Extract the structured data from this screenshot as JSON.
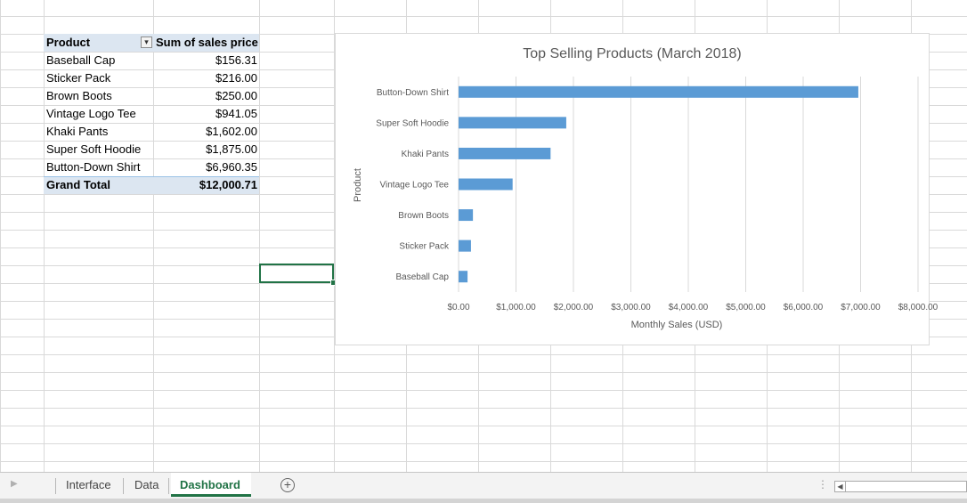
{
  "pivot": {
    "header_product": "Product",
    "header_sum": "Sum of sales price",
    "filter_icon": "filter-sort-icon",
    "rows": [
      {
        "product": "Baseball Cap",
        "value": "$156.31"
      },
      {
        "product": "Sticker Pack",
        "value": "$216.00"
      },
      {
        "product": "Brown Boots",
        "value": "$250.00"
      },
      {
        "product": "Vintage Logo Tee",
        "value": "$941.05"
      },
      {
        "product": "Khaki Pants",
        "value": "$1,602.00"
      },
      {
        "product": "Super Soft Hoodie",
        "value": "$1,875.00"
      },
      {
        "product": "Button-Down Shirt",
        "value": "$6,960.35"
      }
    ],
    "total_label": "Grand Total",
    "total_value": "$12,000.71"
  },
  "chart_data": {
    "type": "bar",
    "orientation": "horizontal",
    "title": "Top Selling Products (March 2018)",
    "xlabel": "Monthly Sales (USD)",
    "ylabel": "Product",
    "categories": [
      "Button-Down Shirt",
      "Super Soft Hoodie",
      "Khaki Pants",
      "Vintage Logo Tee",
      "Brown Boots",
      "Sticker Pack",
      "Baseball Cap"
    ],
    "values": [
      6960.35,
      1875.0,
      1602.0,
      941.05,
      250.0,
      216.0,
      156.31
    ],
    "xlim": [
      0,
      8000
    ],
    "tick_labels": [
      "$0.00",
      "$1,000.00",
      "$2,000.00",
      "$3,000.00",
      "$4,000.00",
      "$5,000.00",
      "$6,000.00",
      "$7,000.00",
      "$8,000.00"
    ],
    "bar_color": "#5b9bd5",
    "grid": true,
    "legend": "none"
  },
  "tabs": {
    "items": [
      {
        "label": "Interface"
      },
      {
        "label": "Data"
      },
      {
        "label": "Dashboard"
      }
    ],
    "active": "Dashboard",
    "add_label": "+",
    "active_color": "#217346"
  }
}
